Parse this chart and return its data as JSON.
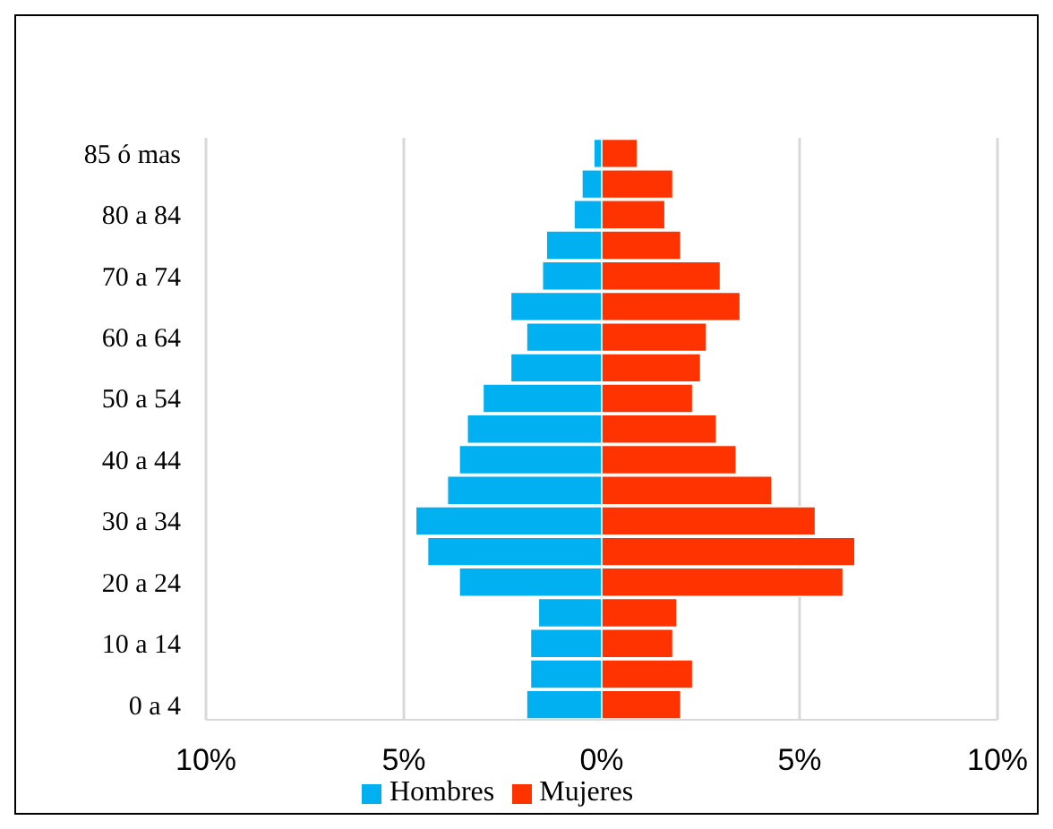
{
  "chart_data": {
    "type": "bar",
    "orientation": "horizontal",
    "stacked": true,
    "categories": [
      "85 ó mas",
      null,
      "80 a 84",
      null,
      "70 a 74",
      null,
      "60 a 64",
      null,
      "50 a 54",
      null,
      "40 a 44",
      null,
      "30 a 34",
      null,
      "20 a 24",
      null,
      "10 a 14",
      null,
      "0 a 4"
    ],
    "series": [
      {
        "name": "Hombres",
        "color": "#00b0f0",
        "values": [
          -0.2,
          -0.5,
          -0.7,
          -1.4,
          -1.5,
          -2.3,
          -1.9,
          -2.3,
          -3.0,
          -3.4,
          -3.6,
          -3.9,
          -4.7,
          -4.4,
          -3.6,
          -1.6,
          -1.8,
          -1.8,
          -1.9
        ]
      },
      {
        "name": "Mujeres",
        "color": "#ff3300",
        "values": [
          0.9,
          1.8,
          1.6,
          2.0,
          3.0,
          3.5,
          2.65,
          2.5,
          2.3,
          2.9,
          3.4,
          4.3,
          5.4,
          6.4,
          6.1,
          1.9,
          1.8,
          2.3,
          2.0
        ]
      }
    ],
    "xlim": [
      -10,
      10
    ],
    "xticks": [
      {
        "value": -10,
        "label": "10%"
      },
      {
        "value": -5,
        "label": "5%"
      },
      {
        "value": 0,
        "label": "0%"
      },
      {
        "value": 5,
        "label": "5%"
      },
      {
        "value": 10,
        "label": "10%"
      }
    ],
    "grid": "x",
    "legend": "bottom"
  }
}
